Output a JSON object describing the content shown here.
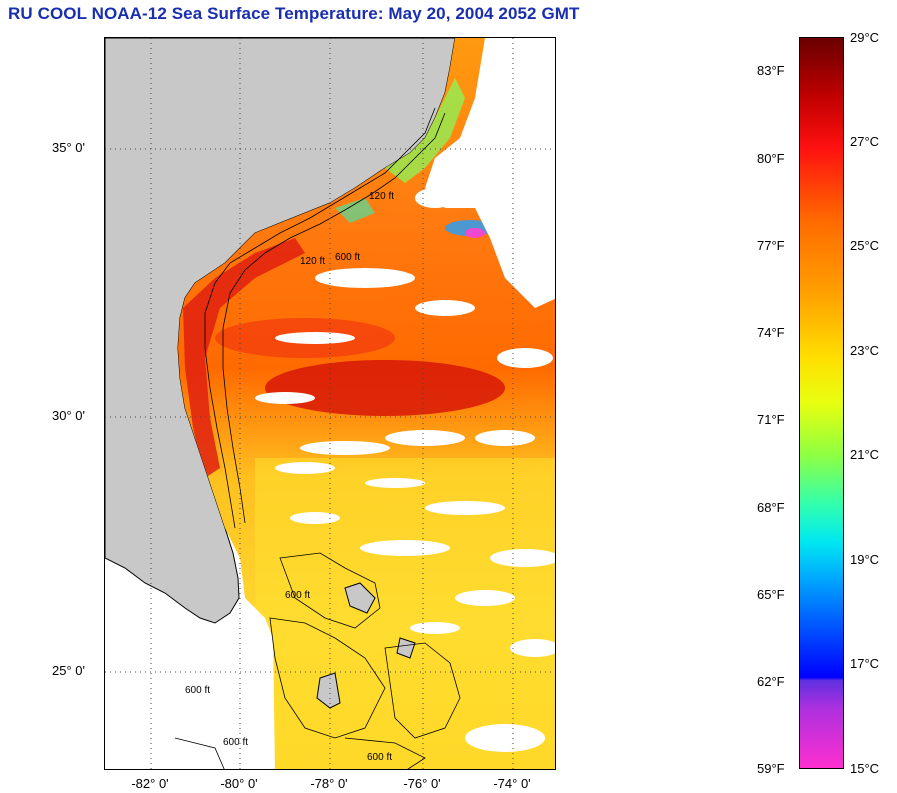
{
  "title": "RU COOL  NOAA-12  Sea Surface Temperature:  May 20, 2004 2052 GMT",
  "map": {
    "latitude_labels": [
      "35° 0'",
      "30° 0'",
      "25° 0'"
    ],
    "longitude_labels": [
      "-82° 0'",
      "-80° 0'",
      "-78° 0'",
      "-76° 0'",
      "-74° 0'"
    ],
    "contour_labels": [
      "120 ft",
      "600 ft",
      "120 ft",
      "600 ft",
      "600 ft",
      "600 ft",
      "600 ft"
    ],
    "colors": {
      "land": "#c8c8c8",
      "no_data": "#ffffff",
      "grid": "#444444"
    }
  },
  "colorbar": {
    "fahrenheit_labels": [
      "83°F",
      "80°F",
      "77°F",
      "74°F",
      "71°F",
      "68°F",
      "65°F",
      "62°F",
      "59°F"
    ],
    "celsius_labels": [
      "29°C",
      "27°C",
      "25°C",
      "23°C",
      "21°C",
      "19°C",
      "17°C",
      "15°C"
    ]
  }
}
